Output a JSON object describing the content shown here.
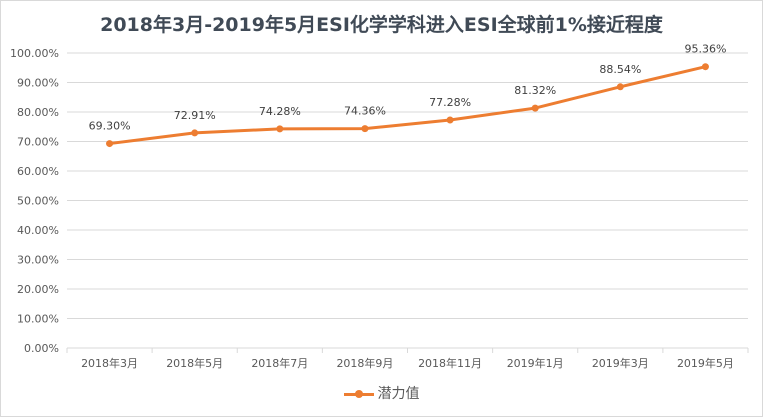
{
  "chart_data": {
    "type": "line",
    "title": "2018年3月-2019年5月ESI化学学科进入ESI全球前1%接近程度",
    "categories": [
      "2018年3月",
      "2018年5月",
      "2018年7月",
      "2018年9月",
      "2018年11月",
      "2019年1月",
      "2019年3月",
      "2019年5月"
    ],
    "series": [
      {
        "name": "潜力值",
        "values": [
          69.3,
          72.91,
          74.28,
          74.36,
          77.28,
          81.32,
          88.54,
          95.36
        ],
        "color": "#ed7d31"
      }
    ],
    "data_labels": [
      "69.30%",
      "72.91%",
      "74.28%",
      "74.36%",
      "77.28%",
      "81.32%",
      "88.54%",
      "95.36%"
    ],
    "yticks": [
      "0.00%",
      "10.00%",
      "20.00%",
      "30.00%",
      "40.00%",
      "50.00%",
      "60.00%",
      "70.00%",
      "80.00%",
      "90.00%",
      "100.00%"
    ],
    "ylim": [
      0,
      100
    ],
    "grid": true,
    "legend": "bottom",
    "xlabel": "",
    "ylabel": ""
  }
}
